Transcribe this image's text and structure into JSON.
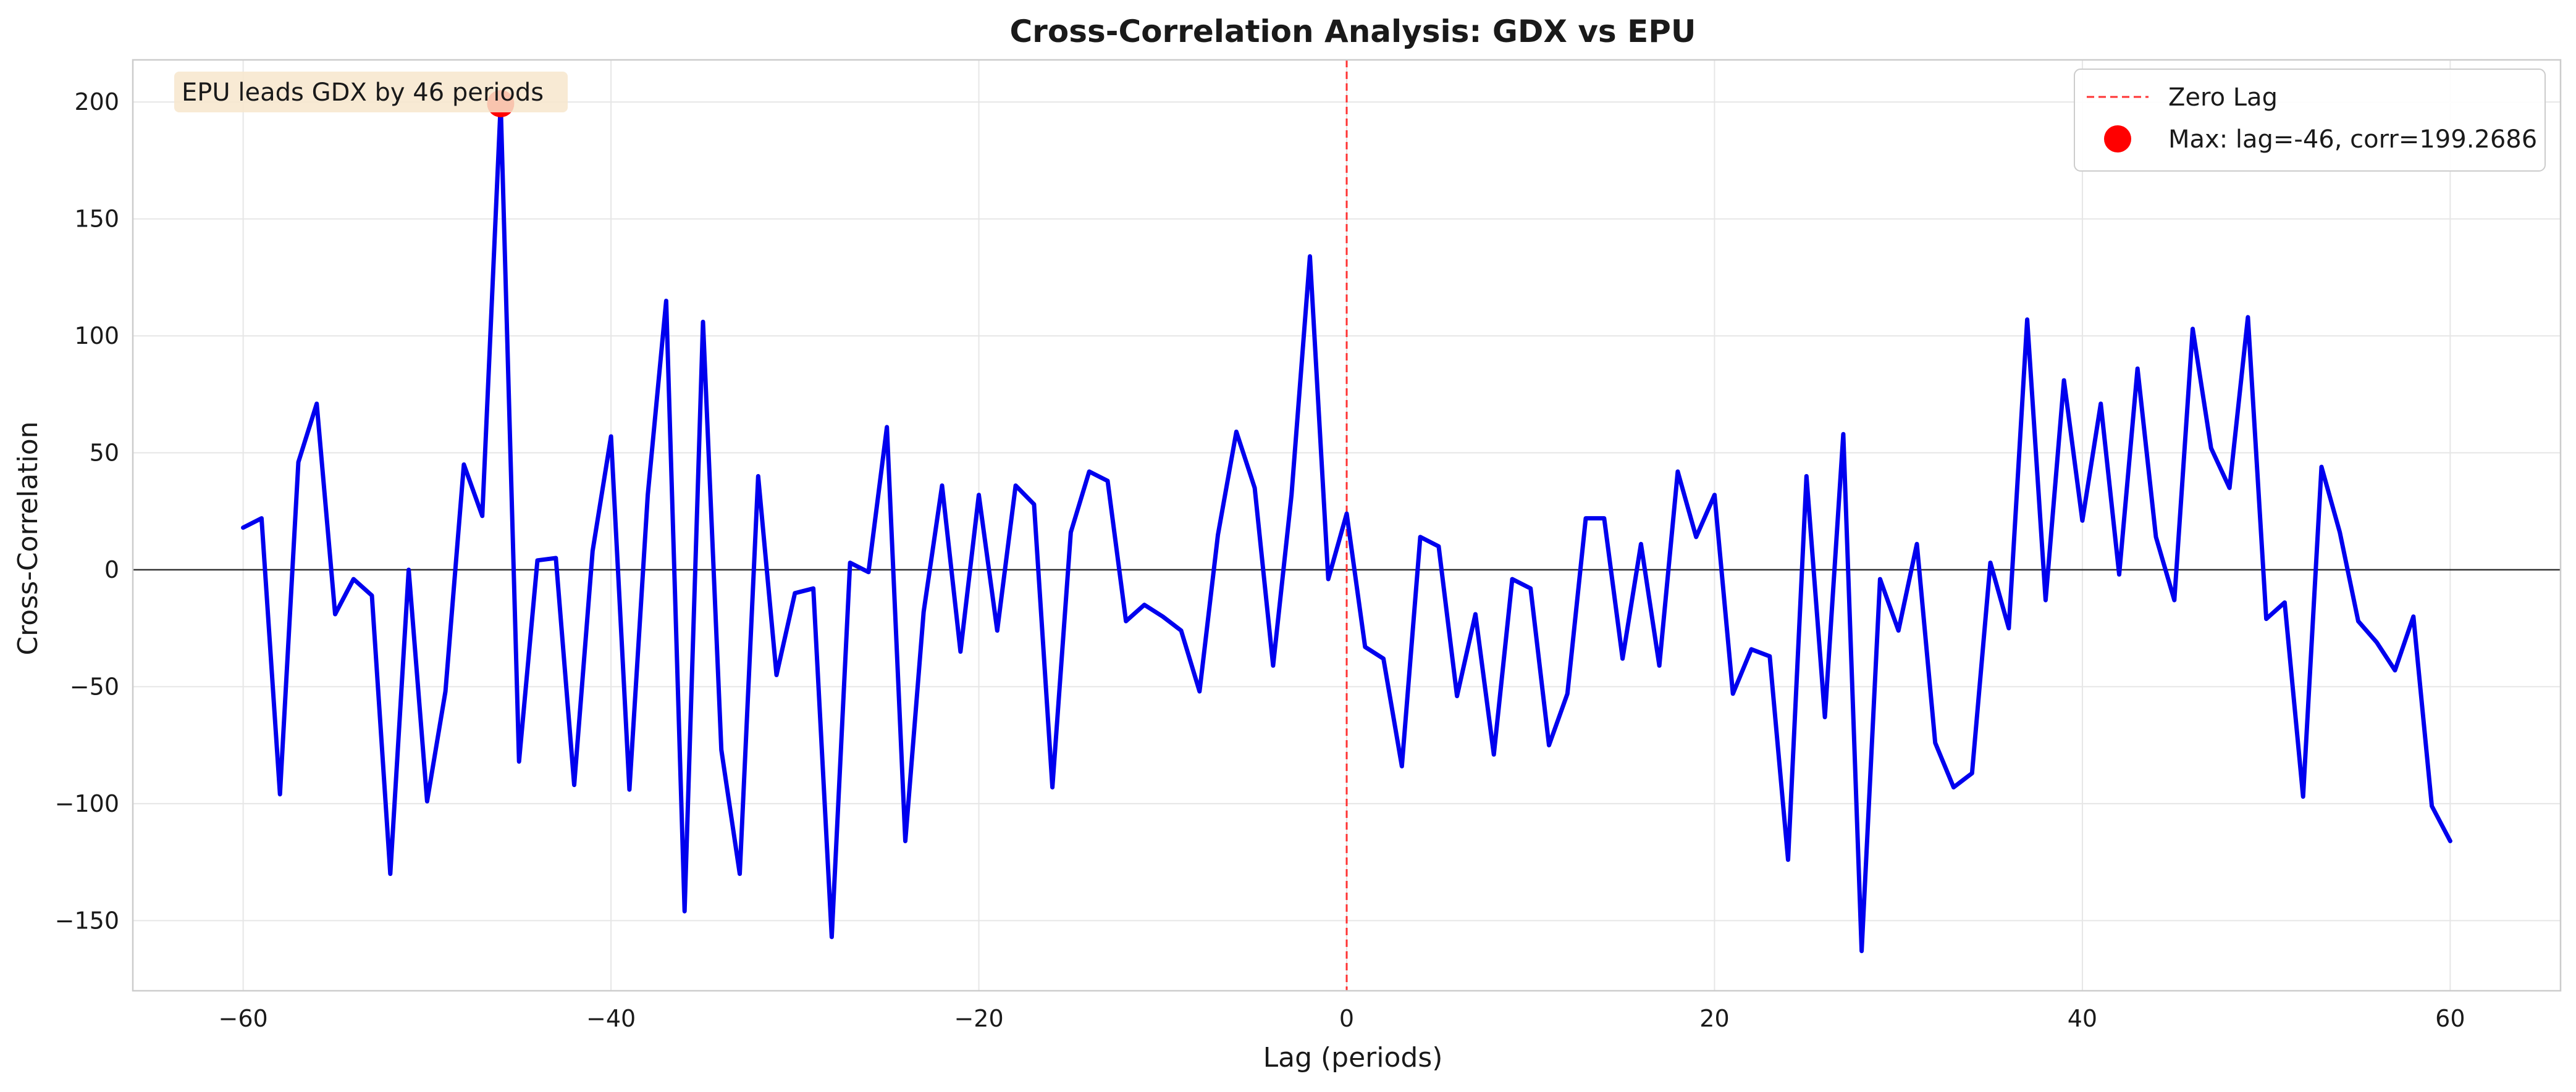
{
  "chart_data": {
    "type": "line",
    "title": "Cross-Correlation Analysis: GDX vs EPU",
    "xlabel": "Lag (periods)",
    "ylabel": "Cross-Correlation",
    "xlim": [
      -66,
      66
    ],
    "ylim": [
      -180,
      218
    ],
    "xticks": [
      -60,
      -40,
      -20,
      0,
      20,
      40,
      60
    ],
    "xtick_labels": [
      "−60",
      "−40",
      "−20",
      "0",
      "20",
      "40",
      "60"
    ],
    "yticks": [
      -150,
      -100,
      -50,
      0,
      50,
      100,
      150,
      200
    ],
    "ytick_labels": [
      "−150",
      "−100",
      "−50",
      "0",
      "50",
      "100",
      "150",
      "200"
    ],
    "grid": true,
    "legend_position": "top-right",
    "colors": {
      "line": "#0000ee",
      "zero_lag": "#ff3333",
      "max_marker": "#ff0000",
      "zero_line": "#333333",
      "grid": "#e6e6e6",
      "annotation_bg": "#f7e6cc"
    },
    "series": [
      {
        "x": [
          -60,
          -59,
          -58,
          -57,
          -56,
          -55,
          -54,
          -53,
          -52,
          -51,
          -50,
          -49,
          -48,
          -47,
          -46,
          -45,
          -44,
          -43,
          -42,
          -41,
          -40,
          -39,
          -38,
          -37,
          -36,
          -35,
          -34,
          -33,
          -32,
          -31,
          -30,
          -29,
          -28,
          -27,
          -26,
          -25,
          -24,
          -23,
          -22,
          -21,
          -20,
          -19,
          -18,
          -17,
          -16,
          -15,
          -14,
          -13,
          -12,
          -11,
          -10,
          -9,
          -8,
          -7,
          -6,
          -5,
          -4,
          -3,
          -2,
          -1,
          0,
          1,
          2,
          3,
          4,
          5,
          6,
          7,
          8,
          9,
          10,
          11,
          12,
          13,
          14,
          15,
          16,
          17,
          18,
          19,
          20,
          21,
          22,
          23,
          24,
          25,
          26,
          27,
          28,
          29,
          30,
          31,
          32,
          33,
          34,
          35,
          36,
          37,
          38,
          39,
          40,
          41,
          42,
          43,
          44,
          45,
          46,
          47,
          48,
          49,
          50,
          51,
          52,
          53,
          54,
          55,
          56,
          57,
          58,
          59,
          60
        ],
        "y": [
          18,
          22,
          -96,
          46,
          71,
          -19,
          -4,
          -11,
          -130,
          0,
          -99,
          -52,
          45,
          23,
          199.2686,
          -82,
          4,
          5,
          -92,
          8,
          57,
          -94,
          32,
          115,
          -146,
          106,
          -77,
          -130,
          40,
          -45,
          -10,
          -8,
          -157,
          3,
          -1,
          61,
          -116,
          -18,
          36,
          -35,
          32,
          -26,
          36,
          28,
          -93,
          16,
          42,
          38,
          -22,
          -15,
          -20,
          -26,
          -52,
          15,
          59,
          35,
          -41,
          32,
          134,
          -4,
          24,
          -33,
          -38,
          -84,
          14,
          10,
          -54,
          -19,
          -79,
          -4,
          -8,
          -75,
          -53,
          22,
          22,
          -38,
          11,
          -41,
          42,
          14,
          32,
          -53,
          -34,
          -37,
          -124,
          40,
          -63,
          58,
          -163,
          -4,
          -26,
          11,
          -74,
          -93,
          -87,
          3,
          -25,
          107,
          -13,
          81,
          21,
          71,
          -2,
          86,
          14,
          -13,
          103,
          52,
          35,
          108,
          -21,
          -14,
          -97,
          44,
          16,
          -22,
          -31,
          -43,
          -20,
          -101,
          -116
        ]
      }
    ],
    "reference_line": {
      "x": 0,
      "label": "Zero Lag"
    },
    "max_point": {
      "lag": -46,
      "corr": 199.2686,
      "label": "Max: lag=-46, corr=199.2686"
    },
    "annotation": "EPU leads GDX by 46 periods"
  }
}
